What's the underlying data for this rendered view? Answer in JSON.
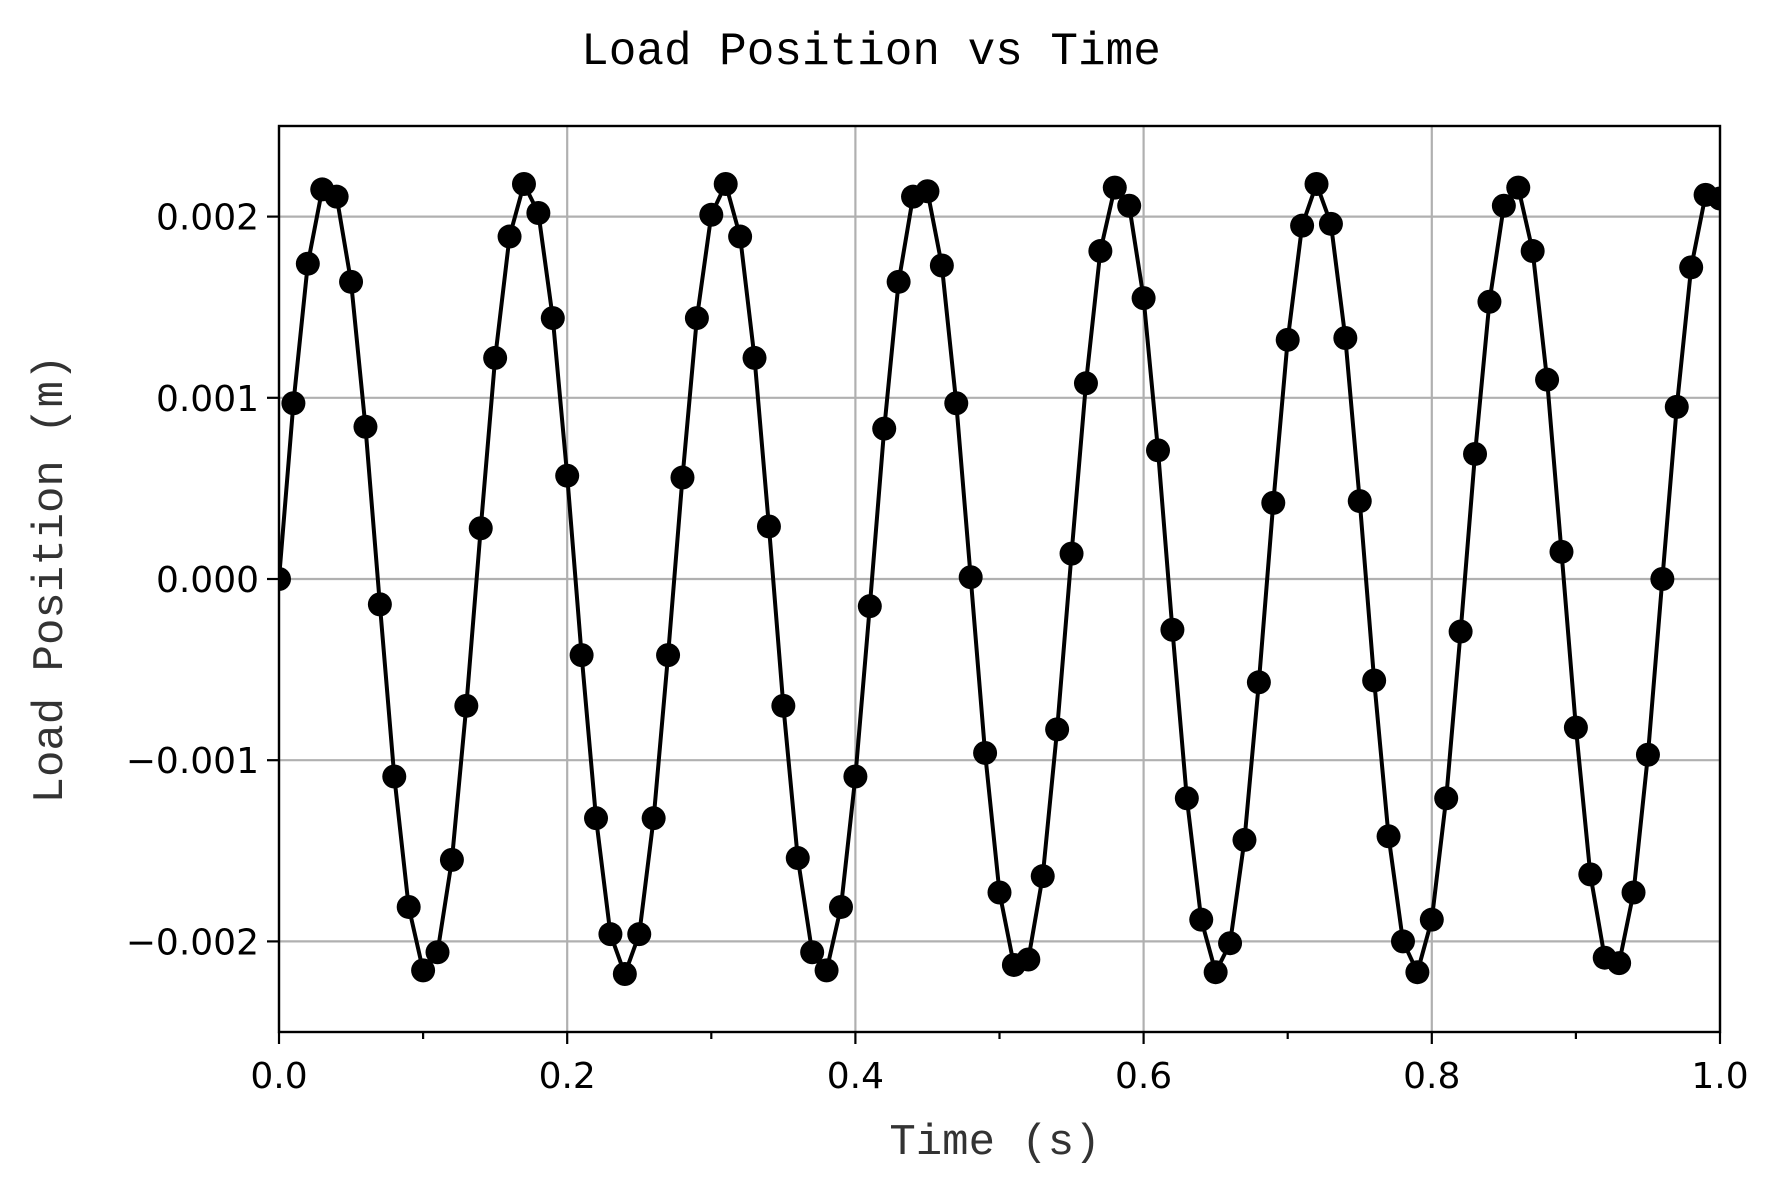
{
  "chart_data": {
    "type": "line",
    "title": "Load Position vs Time",
    "xlabel": "Time (s)",
    "ylabel": "Load Position (m)",
    "xlim": [
      0.0,
      1.0
    ],
    "ylim": [
      -0.0025,
      0.0025
    ],
    "grid": true,
    "x_ticks": [
      0.0,
      0.2,
      0.4,
      0.6,
      0.8,
      1.0
    ],
    "x_tick_labels": [
      "0.0",
      "0.2",
      "0.4",
      "0.6",
      "0.8",
      "1.0"
    ],
    "x_minor_ticks": [
      0.1,
      0.3,
      0.5,
      0.7,
      0.9
    ],
    "y_ticks": [
      0.002,
      0.001,
      0.0,
      -0.001,
      -0.002
    ],
    "y_tick_labels": [
      "0.002",
      "0.001",
      "0.000",
      "−0.001",
      "−0.002"
    ],
    "color": "#000000",
    "marker": "circle",
    "series": [
      {
        "x": [
          0.0,
          0.01,
          0.02,
          0.03,
          0.04,
          0.05,
          0.06,
          0.07,
          0.08,
          0.09,
          0.1,
          0.11,
          0.12,
          0.13,
          0.14,
          0.15,
          0.16,
          0.17,
          0.18,
          0.19,
          0.2,
          0.21,
          0.22,
          0.23,
          0.24,
          0.25,
          0.26,
          0.27,
          0.28,
          0.29,
          0.3,
          0.31,
          0.32,
          0.33,
          0.34,
          0.35,
          0.36,
          0.37,
          0.38,
          0.39,
          0.4,
          0.41,
          0.42,
          0.43,
          0.44,
          0.45,
          0.46,
          0.47,
          0.48,
          0.49,
          0.5,
          0.51,
          0.52,
          0.53,
          0.54,
          0.55,
          0.56,
          0.57,
          0.58,
          0.59,
          0.6,
          0.61,
          0.62,
          0.63,
          0.64,
          0.65,
          0.66,
          0.67,
          0.68,
          0.69,
          0.7,
          0.71,
          0.72,
          0.73,
          0.74,
          0.75,
          0.76,
          0.77,
          0.78,
          0.79,
          0.8,
          0.81,
          0.82,
          0.83,
          0.84,
          0.85,
          0.86,
          0.87,
          0.88,
          0.89,
          0.9,
          0.91,
          0.92,
          0.93,
          0.94,
          0.95,
          0.96,
          0.97,
          0.98,
          0.99,
          1.0
        ],
        "y": [
          0.0,
          0.00097,
          0.00174,
          0.00215,
          0.00211,
          0.00164,
          0.00084,
          -0.00014,
          -0.00109,
          -0.00181,
          -0.00216,
          -0.00206,
          -0.00155,
          -0.0007,
          0.00028,
          0.00122,
          0.00189,
          0.00218,
          0.00202,
          0.00144,
          0.00057,
          -0.00042,
          -0.00132,
          -0.00196,
          -0.00218,
          -0.00196,
          -0.00132,
          -0.00042,
          0.00056,
          0.00144,
          0.00201,
          0.00218,
          0.00189,
          0.00122,
          0.00029,
          -0.0007,
          -0.00154,
          -0.00206,
          -0.00216,
          -0.00181,
          -0.00109,
          -0.00015,
          0.00083,
          0.00164,
          0.00211,
          0.00214,
          0.00173,
          0.00097,
          1e-05,
          -0.00096,
          -0.00173,
          -0.00213,
          -0.0021,
          -0.00164,
          -0.00083,
          0.00014,
          0.00108,
          0.00181,
          0.00216,
          0.00206,
          0.00155,
          0.00071,
          -0.00028,
          -0.00121,
          -0.00188,
          -0.00217,
          -0.00201,
          -0.00144,
          -0.00057,
          0.00042,
          0.00132,
          0.00195,
          0.00218,
          0.00196,
          0.00133,
          0.00043,
          -0.00056,
          -0.00142,
          -0.002,
          -0.00217,
          -0.00188,
          -0.00121,
          -0.00029,
          0.00069,
          0.00153,
          0.00206,
          0.00216,
          0.00181,
          0.0011,
          0.00015,
          -0.00082,
          -0.00163,
          -0.00209,
          -0.00212,
          -0.00173,
          -0.00097,
          0.0,
          0.00095,
          0.00172,
          0.00212,
          0.0021
        ]
      }
    ]
  }
}
